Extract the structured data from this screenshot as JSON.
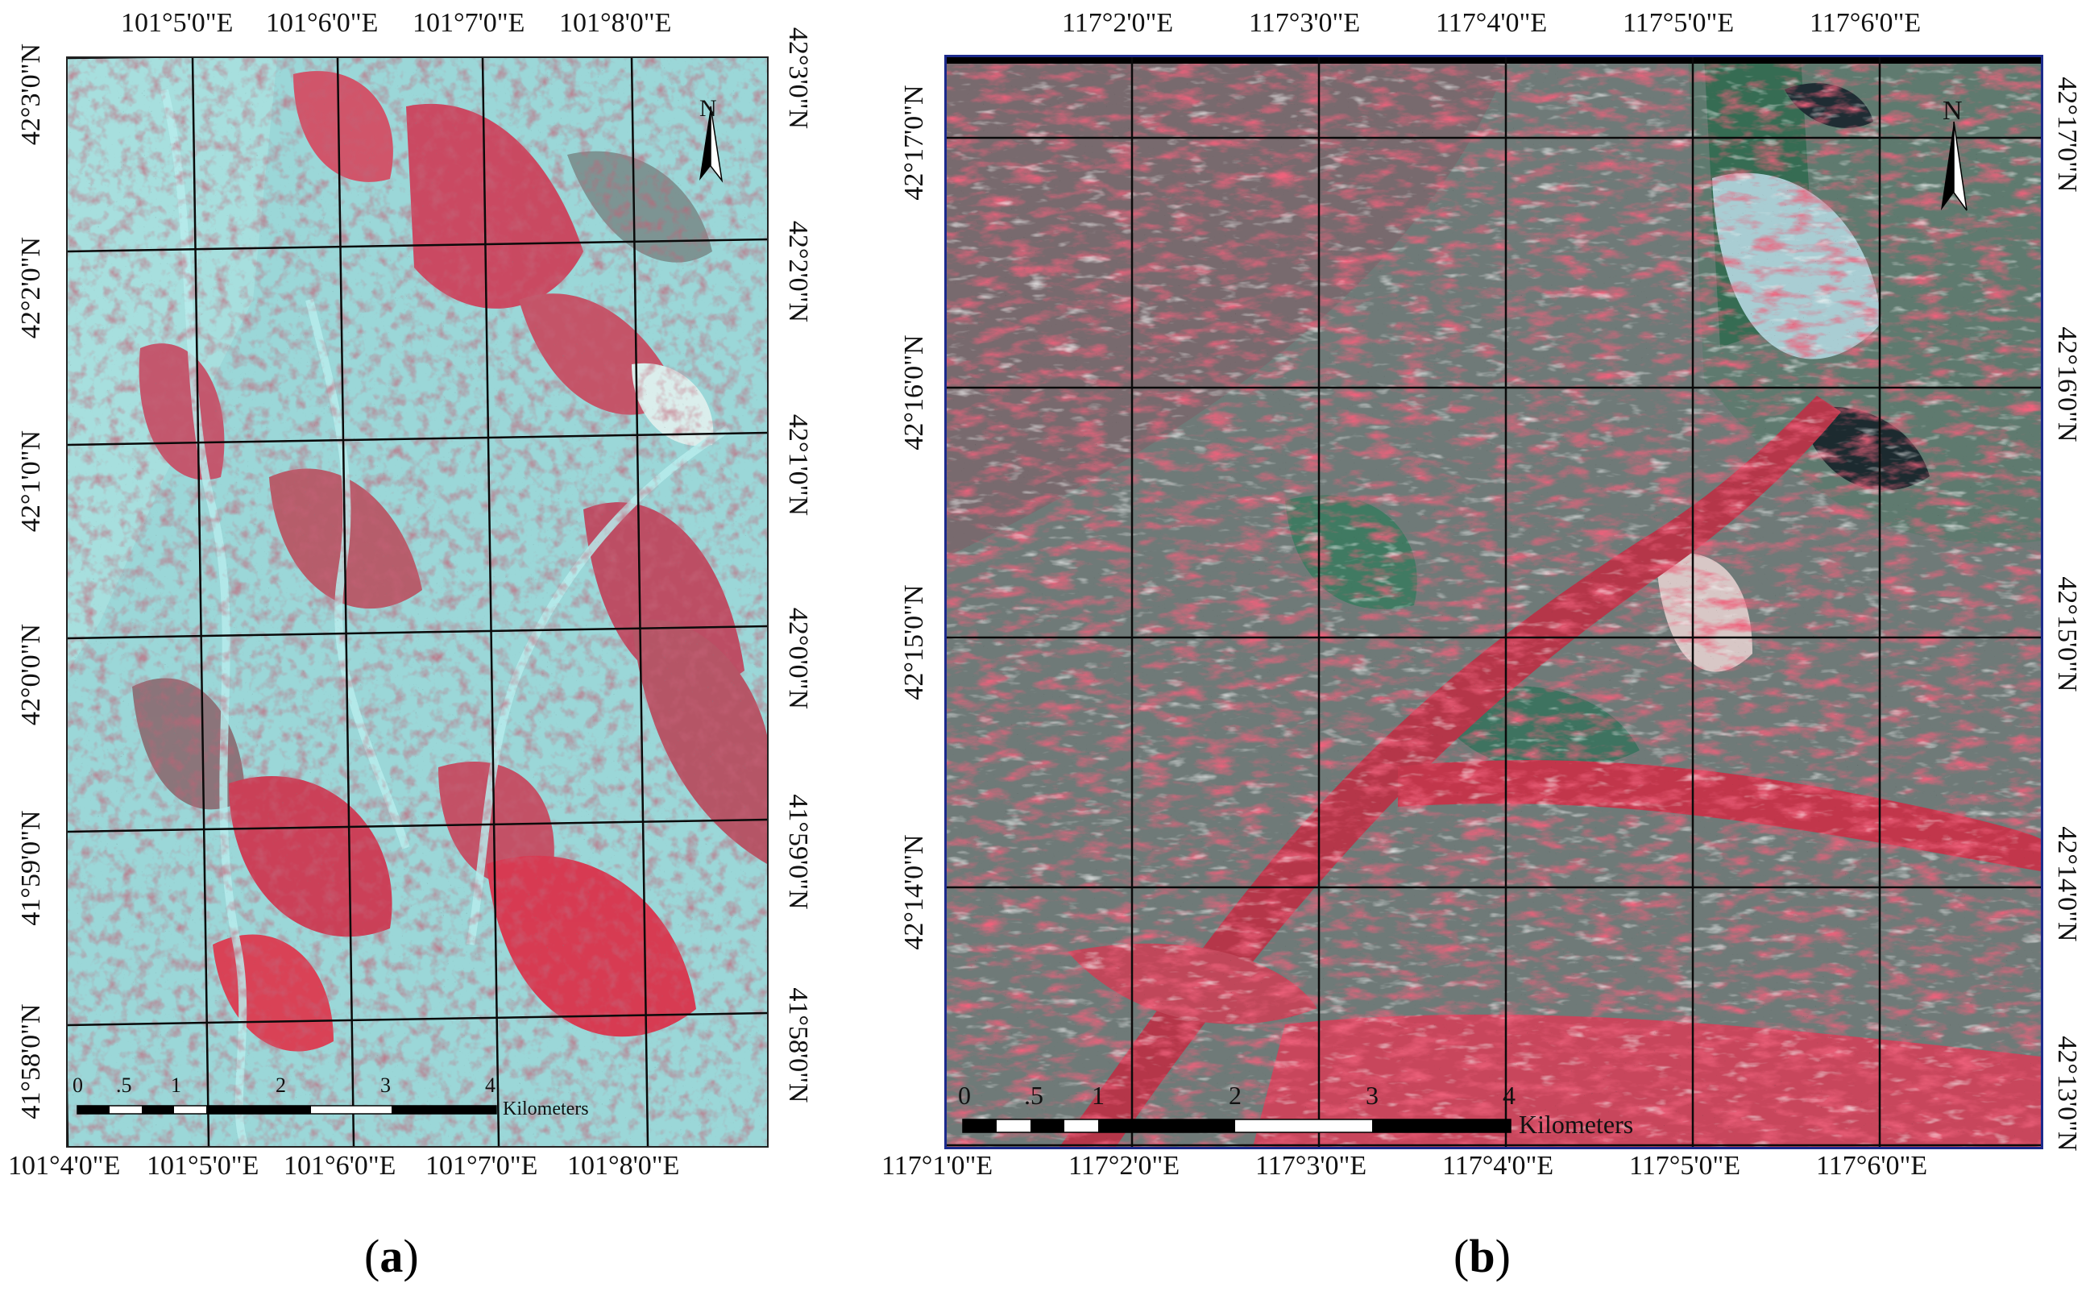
{
  "panel_a": {
    "caption_prefix": "(",
    "caption_letter": "a",
    "caption_suffix": ")",
    "top_lon_labels": [
      "101°5'0\"E",
      "101°6'0\"E",
      "101°7'0\"E",
      "101°8'0\"E"
    ],
    "bottom_lon_labels": [
      "101°4'0\"E",
      "101°5'0\"E",
      "101°6'0\"E",
      "101°7'0\"E",
      "101°8'0\"E"
    ],
    "left_lat_labels": [
      "42°3'0\"N",
      "42°2'0\"N",
      "42°1'0\"N",
      "42°0'0\"N",
      "41°59'0\"N",
      "41°58'0\"N"
    ],
    "right_lat_labels": [
      "42°3'0\"N",
      "42°2'0\"N",
      "42°1'0\"N",
      "42°0'0\"N",
      "41°59'0\"N",
      "41°58'0\"N"
    ],
    "north_label": "N",
    "scale_ticks": [
      "0",
      ".5",
      "1",
      "2",
      "3",
      "4"
    ],
    "scale_unit": "Kilometers"
  },
  "panel_b": {
    "caption_prefix": "(",
    "caption_letter": "b",
    "caption_suffix": ")",
    "top_lon_labels": [
      "117°2'0\"E",
      "117°3'0\"E",
      "117°4'0\"E",
      "117°5'0\"E",
      "117°6'0\"E"
    ],
    "bottom_lon_labels": [
      "117°1'0\"E",
      "117°2'0\"E",
      "117°3'0\"E",
      "117°4'0\"E",
      "117°5'0\"E",
      "117°6'0\"E"
    ],
    "left_lat_labels": [
      "42°17'0\"N",
      "42°16'0\"N",
      "42°15'0\"N",
      "42°14'0\"N"
    ],
    "right_lat_labels": [
      "42°17'0\"N",
      "42°16'0\"N",
      "42°15'0\"N",
      "42°14'0\"N",
      "42°13'0\"N"
    ],
    "north_label": "N",
    "scale_ticks": [
      "0",
      ".5",
      "1",
      "2",
      "3",
      "4"
    ],
    "scale_unit": "Kilometers"
  },
  "colors": {
    "vegetation_red": "#d8283c",
    "bare_cyan": "#8fd3d6",
    "soil_grey": "#6f7a78",
    "grid_line": "#0a0a0a",
    "frame_b": "#1c2a8c"
  }
}
